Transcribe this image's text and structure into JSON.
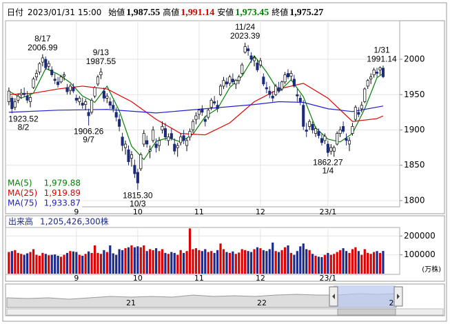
{
  "header": {
    "date_label": "日付",
    "datetime": "2023/01/31 15:00",
    "fields": [
      {
        "name": "始値",
        "value": "1,987.55",
        "color": "#000000"
      },
      {
        "name": "高値",
        "value": "1,991.14",
        "color": "#e00000"
      },
      {
        "name": "安値",
        "value": "1,973.45",
        "color": "#008000"
      },
      {
        "name": "終値",
        "value": "1,975.27",
        "color": "#000000"
      }
    ]
  },
  "chart_data": {
    "type": "candlestick",
    "up_color": "#ffffff",
    "down_color": "#1c2a7a",
    "grid": true,
    "xlim": [
      -1.1,
      127.4
    ],
    "xticks": [
      {
        "value": 22,
        "label": "9"
      },
      {
        "value": 42,
        "label": "10"
      },
      {
        "value": 62,
        "label": "11"
      },
      {
        "value": 82,
        "label": "12"
      },
      {
        "value": 104,
        "label": "23/1"
      }
    ],
    "ylim": [
      1791.2,
      2052.7
    ],
    "yticks": [
      1800,
      1850,
      1900,
      1950,
      2000
    ],
    "ohlc": [
      [
        1940,
        1960,
        1935,
        1955
      ],
      [
        1945,
        1948,
        1923.52,
        1930
      ],
      [
        1932,
        1945,
        1928,
        1940
      ],
      [
        1942,
        1952,
        1938,
        1948
      ],
      [
        1950,
        1958,
        1944,
        1952
      ],
      [
        1952,
        1960,
        1946,
        1950
      ],
      [
        1948,
        1955,
        1938,
        1942
      ],
      [
        1940,
        1950,
        1932,
        1946
      ],
      [
        1960,
        1975,
        1958,
        1972
      ],
      [
        1975,
        1985,
        1970,
        1980
      ],
      [
        1982,
        1996,
        1978,
        1994
      ],
      [
        1996,
        2006.99,
        1990,
        2002
      ],
      [
        2000,
        2004,
        1985,
        1988
      ],
      [
        1990,
        1998,
        1985,
        1994
      ],
      [
        1985,
        1990,
        1975,
        1978
      ],
      [
        1972,
        1980,
        1965,
        1970
      ],
      [
        1968,
        1975,
        1960,
        1964
      ],
      [
        1968,
        1978,
        1966,
        1975
      ],
      [
        1976,
        1982,
        1970,
        1978
      ],
      [
        1960,
        1965,
        1950,
        1954
      ],
      [
        1956,
        1965,
        1950,
        1962
      ],
      [
        1960,
        1966,
        1952,
        1955
      ],
      [
        1945,
        1950,
        1938,
        1942
      ],
      [
        1940,
        1948,
        1935,
        1945
      ],
      [
        1938,
        1946,
        1930,
        1935
      ],
      [
        1936,
        1944,
        1928,
        1940
      ],
      [
        1925,
        1930,
        1906.26,
        1920
      ],
      [
        1925,
        1945,
        1922,
        1942
      ],
      [
        1948,
        1962,
        1945,
        1960
      ],
      [
        1965,
        1978,
        1962,
        1975
      ],
      [
        1978,
        1987.55,
        1972,
        1982
      ],
      [
        1955,
        1960,
        1940,
        1945
      ],
      [
        1945,
        1952,
        1938,
        1948
      ],
      [
        1940,
        1946,
        1930,
        1935
      ],
      [
        1935,
        1942,
        1925,
        1930
      ],
      [
        1925,
        1932,
        1912,
        1918
      ],
      [
        1915,
        1922,
        1898,
        1905
      ],
      [
        1890,
        1896,
        1870,
        1878
      ],
      [
        1875,
        1885,
        1865,
        1880
      ],
      [
        1872,
        1878,
        1850,
        1855
      ],
      [
        1860,
        1870,
        1848,
        1865
      ],
      [
        1850,
        1858,
        1832,
        1838
      ],
      [
        1840,
        1845,
        1815.3,
        1825
      ],
      [
        1845,
        1868,
        1842,
        1865
      ],
      [
        1880,
        1900,
        1876,
        1895
      ],
      [
        1885,
        1892,
        1875,
        1880
      ],
      [
        1870,
        1878,
        1860,
        1872
      ],
      [
        1885,
        1905,
        1882,
        1900
      ],
      [
        1880,
        1888,
        1868,
        1875
      ],
      [
        1878,
        1890,
        1870,
        1885
      ],
      [
        1900,
        1912,
        1895,
        1905
      ],
      [
        1902,
        1910,
        1885,
        1890
      ],
      [
        1885,
        1895,
        1878,
        1890
      ],
      [
        1895,
        1902,
        1885,
        1888
      ],
      [
        1880,
        1888,
        1865,
        1870
      ],
      [
        1875,
        1882,
        1862,
        1878
      ],
      [
        1882,
        1895,
        1878,
        1890
      ],
      [
        1892,
        1900,
        1880,
        1885
      ],
      [
        1878,
        1888,
        1870,
        1885
      ],
      [
        1890,
        1902,
        1885,
        1898
      ],
      [
        1900,
        1915,
        1896,
        1912
      ],
      [
        1915,
        1925,
        1908,
        1920
      ],
      [
        1922,
        1930,
        1915,
        1928
      ],
      [
        1930,
        1935,
        1920,
        1925
      ],
      [
        1915,
        1920,
        1905,
        1912
      ],
      [
        1918,
        1930,
        1915,
        1928
      ],
      [
        1932,
        1945,
        1928,
        1942
      ],
      [
        1940,
        1948,
        1935,
        1938
      ],
      [
        1935,
        1942,
        1925,
        1930
      ],
      [
        1950,
        1965,
        1948,
        1962
      ],
      [
        1962,
        1975,
        1958,
        1970
      ],
      [
        1968,
        1974,
        1960,
        1965
      ],
      [
        1966,
        1978,
        1962,
        1975
      ],
      [
        1972,
        1980,
        1965,
        1968
      ],
      [
        1965,
        1972,
        1958,
        1970
      ],
      [
        1970,
        1978,
        1965,
        1975
      ],
      [
        1980,
        1995,
        1978,
        1992
      ],
      [
        2010,
        2023.39,
        2008,
        2018
      ],
      [
        2015,
        2020,
        2005,
        2012
      ],
      [
        2005,
        2010,
        1995,
        2000
      ],
      [
        1998,
        2005,
        1990,
        2002
      ],
      [
        1995,
        2000,
        1982,
        1985
      ],
      [
        1992,
        2002,
        1988,
        1998
      ],
      [
        1975,
        1980,
        1962,
        1965
      ],
      [
        1960,
        1968,
        1952,
        1958
      ],
      [
        1955,
        1962,
        1945,
        1950
      ],
      [
        1948,
        1955,
        1940,
        1945
      ],
      [
        1950,
        1965,
        1948,
        1962
      ],
      [
        1960,
        1968,
        1952,
        1955
      ],
      [
        1958,
        1970,
        1955,
        1968
      ],
      [
        1968,
        1982,
        1965,
        1978
      ],
      [
        1980,
        1986,
        1972,
        1975
      ],
      [
        1976,
        1984,
        1970,
        1980
      ],
      [
        1972,
        1978,
        1960,
        1962
      ],
      [
        1950,
        1958,
        1940,
        1948
      ],
      [
        1945,
        1950,
        1935,
        1940
      ],
      [
        1935,
        1942,
        1900,
        1905
      ],
      [
        1900,
        1910,
        1890,
        1898
      ],
      [
        1905,
        1915,
        1900,
        1912
      ],
      [
        1908,
        1912,
        1895,
        1900
      ],
      [
        1895,
        1905,
        1890,
        1902
      ],
      [
        1898,
        1902,
        1888,
        1892
      ],
      [
        1888,
        1895,
        1878,
        1882
      ],
      [
        1885,
        1895,
        1880,
        1891
      ],
      [
        1880,
        1885,
        1862.27,
        1868
      ],
      [
        1870,
        1880,
        1865,
        1875
      ],
      [
        1870,
        1878,
        1862,
        1875
      ],
      [
        1880,
        1898,
        1878,
        1895
      ],
      [
        1895,
        1905,
        1890,
        1900
      ],
      [
        1905,
        1912,
        1895,
        1898
      ],
      [
        1888,
        1895,
        1878,
        1885
      ],
      [
        1880,
        1890,
        1870,
        1885
      ],
      [
        1895,
        1910,
        1892,
        1905
      ],
      [
        1915,
        1935,
        1912,
        1932
      ],
      [
        1925,
        1932,
        1918,
        1922
      ],
      [
        1930,
        1940,
        1925,
        1935
      ],
      [
        1940,
        1960,
        1938,
        1958
      ],
      [
        1962,
        1972,
        1958,
        1970
      ],
      [
        1972,
        1980,
        1965,
        1975
      ],
      [
        1978,
        1988,
        1974,
        1985
      ],
      [
        1982,
        1988,
        1975,
        1980
      ],
      [
        1985,
        1990,
        1978,
        1988
      ],
      [
        1987.55,
        1991.14,
        1973.45,
        1975.27
      ]
    ],
    "annotations": [
      {
        "label": "8/2",
        "value": 1923.52
      },
      {
        "label": "8/17",
        "value": 2006.99
      },
      {
        "label": "9/7",
        "value": 1906.26
      },
      {
        "label": "9/13",
        "value": 1987.55
      },
      {
        "label": "10/3",
        "value": {
          "value": 1815.3,
          "label": "1815.30"
        }
      },
      {
        "label": "11/24",
        "value": 2023.39
      },
      {
        "label": "1/4",
        "value": 1862.27
      },
      {
        "label": "1/31",
        "value": 1991.14
      }
    ],
    "series": [
      {
        "name": "MA(5)",
        "color": "#008000",
        "legend_value": "1,979.88",
        "x": [
          0,
          4,
          8,
          12,
          16,
          20,
          24,
          28,
          32,
          36,
          40,
          44,
          48,
          52,
          56,
          60,
          64,
          68,
          72,
          76,
          80,
          84,
          88,
          92,
          96,
          100,
          104,
          108,
          112,
          116,
          120,
          122
        ],
        "values": [
          1955,
          1945,
          1952,
          1987,
          1979,
          1967,
          1948,
          1939,
          1962,
          1927,
          1877,
          1858,
          1884,
          1889,
          1883,
          1894,
          1919,
          1930,
          1960,
          1976,
          2005,
          1982,
          1954,
          1971,
          1947,
          1903,
          1887,
          1883,
          1895,
          1930,
          1974,
          1979.88
        ]
      },
      {
        "name": "MA(25)",
        "color": "#e00000",
        "legend_value": "1,919.89",
        "x": [
          0,
          8,
          16,
          24,
          32,
          40,
          48,
          56,
          64,
          72,
          80,
          88,
          96,
          104,
          112,
          120,
          122
        ],
        "values": [
          1950,
          1952,
          1958,
          1962,
          1958,
          1940,
          1915,
          1895,
          1893,
          1910,
          1940,
          1958,
          1966,
          1945,
          1912,
          1916,
          1919.89
        ]
      },
      {
        "name": "MA(75)",
        "color": "#2020d0",
        "legend_value": "1,933.87",
        "x": [
          0,
          16,
          32,
          48,
          64,
          80,
          88,
          96,
          104,
          112,
          122
        ],
        "values": [
          1925,
          1928,
          1929,
          1924,
          1930,
          1936,
          1940,
          1939,
          1930,
          1926,
          1933.87
        ]
      }
    ],
    "volume": {
      "title": "出来高",
      "total": "1,205,426,300株",
      "unit": "(万株)",
      "up_color": "#e00000",
      "down_color": "#1c2a8a",
      "ylim": [
        0,
        245000
      ],
      "yticks": [
        100000,
        200000
      ],
      "values": [
        115000,
        120000,
        125000,
        110000,
        105000,
        100000,
        108000,
        115000,
        130000,
        100000,
        95000,
        110000,
        105000,
        98000,
        100000,
        102000,
        95000,
        90000,
        100000,
        110000,
        120000,
        118000,
        115000,
        100000,
        95000,
        105000,
        118000,
        110000,
        150000,
        110000,
        105000,
        125000,
        115000,
        150000,
        108000,
        100000,
        130000,
        125000,
        135000,
        140000,
        150000,
        140000,
        145000,
        140000,
        150000,
        120000,
        130000,
        125000,
        135000,
        120000,
        130000,
        110000,
        105000,
        115000,
        110000,
        100000,
        125000,
        110000,
        120000,
        240000,
        130000,
        135000,
        125000,
        120000,
        130000,
        115000,
        120000,
        110000,
        125000,
        160000,
        130000,
        115000,
        110000,
        118000,
        105000,
        112000,
        130000,
        125000,
        120000,
        115000,
        130000,
        140000,
        135000,
        125000,
        120000,
        130000,
        165000,
        120000,
        115000,
        125000,
        140000,
        150000,
        110000,
        100000,
        120000,
        145000,
        160000,
        130000,
        125000,
        105000,
        95000,
        90000,
        88000,
        100000,
        110000,
        100000,
        105000,
        115000,
        125000,
        135000,
        120000,
        110000,
        130000,
        140000,
        120000,
        100000,
        130000,
        110000,
        105000,
        115000,
        120000,
        110000,
        120542.63
      ]
    }
  },
  "navigator": {
    "labels": [
      "21",
      "22",
      "2"
    ]
  }
}
